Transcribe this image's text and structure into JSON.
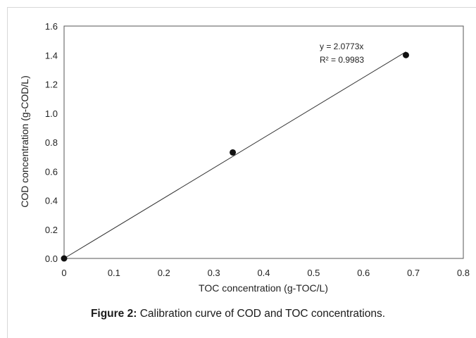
{
  "chart_data": {
    "type": "scatter",
    "xlabel": "TOC concentration (g-TOC/L)",
    "ylabel": "COD concentration (g-COD/L)",
    "xlim": [
      0,
      0.8
    ],
    "ylim": [
      0,
      1.6
    ],
    "x_ticks": [
      "0",
      "0.1",
      "0.2",
      "0.3",
      "0.4",
      "0.5",
      "0.6",
      "0.7",
      "0.8"
    ],
    "y_ticks": [
      "0.0",
      "0.2",
      "0.4",
      "0.6",
      "0.8",
      "1.0",
      "1.2",
      "1.4",
      "1.6"
    ],
    "series": [
      {
        "x": [
          0,
          0.338,
          0.685
        ],
        "y": [
          0,
          0.73,
          1.4
        ]
      }
    ],
    "trendline": {
      "slope": 2.0773,
      "equation": "y = 2.0773x",
      "r_squared": "R² = 0.9983"
    },
    "grid": false,
    "colors": {
      "marker": "#111111",
      "line": "#333333",
      "axis": "#555555"
    }
  },
  "caption": {
    "label": "Figure 2:",
    "text": " Calibration curve of COD and TOC concentrations."
  }
}
